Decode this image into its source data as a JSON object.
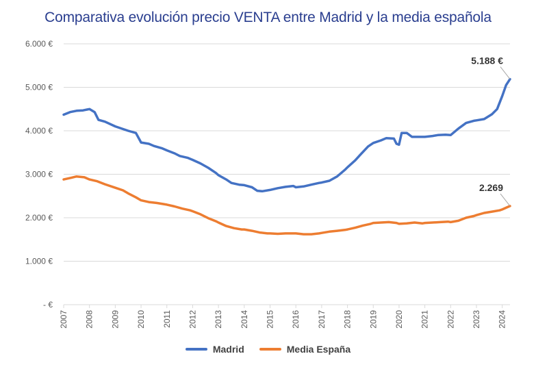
{
  "chart_data": {
    "type": "line",
    "title": "Comparativa evolución precio VENTA entre Madrid y la media española",
    "xlabel": "",
    "ylabel": "",
    "xlim": [
      2007,
      2024.3
    ],
    "ylim": [
      0,
      6000
    ],
    "y_ticks": [
      {
        "value": 0,
        "label": "-  €"
      },
      {
        "value": 1000,
        "label": "1.000 €"
      },
      {
        "value": 2000,
        "label": "2.000 €"
      },
      {
        "value": 3000,
        "label": "3.000 €"
      },
      {
        "value": 4000,
        "label": "4.000 €"
      },
      {
        "value": 5000,
        "label": "5.000 €"
      },
      {
        "value": 6000,
        "label": "6.000 €"
      }
    ],
    "x_ticks": [
      "2007",
      "2008",
      "2009",
      "2010",
      "2011",
      "2012",
      "2013",
      "2014",
      "2015",
      "2016",
      "2017",
      "2018",
      "2019",
      "2020",
      "2021",
      "2022",
      "2023",
      "2024"
    ],
    "grid": true,
    "legend_position": "bottom",
    "series": [
      {
        "name": "Madrid",
        "color": "#4472c4",
        "end_label": "5.188 €",
        "points": [
          [
            2007.0,
            4370
          ],
          [
            2007.25,
            4430
          ],
          [
            2007.5,
            4460
          ],
          [
            2007.75,
            4470
          ],
          [
            2008.0,
            4500
          ],
          [
            2008.2,
            4430
          ],
          [
            2008.35,
            4250
          ],
          [
            2008.6,
            4210
          ],
          [
            2009.0,
            4100
          ],
          [
            2009.5,
            4000
          ],
          [
            2009.8,
            3950
          ],
          [
            2010.0,
            3730
          ],
          [
            2010.3,
            3700
          ],
          [
            2010.5,
            3650
          ],
          [
            2010.8,
            3600
          ],
          [
            2011.0,
            3550
          ],
          [
            2011.3,
            3480
          ],
          [
            2011.5,
            3420
          ],
          [
            2011.8,
            3380
          ],
          [
            2012.0,
            3330
          ],
          [
            2012.3,
            3250
          ],
          [
            2012.6,
            3150
          ],
          [
            2012.9,
            3030
          ],
          [
            2013.0,
            2980
          ],
          [
            2013.3,
            2880
          ],
          [
            2013.5,
            2800
          ],
          [
            2013.8,
            2760
          ],
          [
            2014.0,
            2750
          ],
          [
            2014.3,
            2700
          ],
          [
            2014.5,
            2620
          ],
          [
            2014.7,
            2610
          ],
          [
            2015.0,
            2640
          ],
          [
            2015.3,
            2680
          ],
          [
            2015.6,
            2710
          ],
          [
            2015.9,
            2730
          ],
          [
            2016.0,
            2700
          ],
          [
            2016.3,
            2720
          ],
          [
            2016.6,
            2760
          ],
          [
            2016.9,
            2800
          ],
          [
            2017.0,
            2810
          ],
          [
            2017.3,
            2850
          ],
          [
            2017.6,
            2950
          ],
          [
            2017.9,
            3100
          ],
          [
            2018.0,
            3160
          ],
          [
            2018.3,
            3320
          ],
          [
            2018.5,
            3450
          ],
          [
            2018.8,
            3640
          ],
          [
            2019.0,
            3720
          ],
          [
            2019.3,
            3780
          ],
          [
            2019.5,
            3830
          ],
          [
            2019.8,
            3820
          ],
          [
            2019.9,
            3700
          ],
          [
            2020.0,
            3680
          ],
          [
            2020.1,
            3950
          ],
          [
            2020.3,
            3950
          ],
          [
            2020.5,
            3860
          ],
          [
            2020.8,
            3860
          ],
          [
            2021.0,
            3860
          ],
          [
            2021.3,
            3880
          ],
          [
            2021.5,
            3900
          ],
          [
            2021.8,
            3910
          ],
          [
            2022.0,
            3900
          ],
          [
            2022.3,
            4050
          ],
          [
            2022.6,
            4180
          ],
          [
            2022.9,
            4230
          ],
          [
            2023.0,
            4240
          ],
          [
            2023.3,
            4270
          ],
          [
            2023.6,
            4380
          ],
          [
            2023.8,
            4500
          ],
          [
            2024.0,
            4800
          ],
          [
            2024.15,
            5050
          ],
          [
            2024.3,
            5188
          ]
        ]
      },
      {
        "name": "Media España",
        "color": "#ed7d31",
        "end_label": "2.269",
        "points": [
          [
            2007.0,
            2880
          ],
          [
            2007.3,
            2920
          ],
          [
            2007.5,
            2950
          ],
          [
            2007.8,
            2930
          ],
          [
            2008.0,
            2880
          ],
          [
            2008.3,
            2840
          ],
          [
            2008.6,
            2770
          ],
          [
            2009.0,
            2690
          ],
          [
            2009.3,
            2630
          ],
          [
            2009.5,
            2560
          ],
          [
            2009.8,
            2470
          ],
          [
            2010.0,
            2400
          ],
          [
            2010.3,
            2360
          ],
          [
            2010.6,
            2340
          ],
          [
            2011.0,
            2300
          ],
          [
            2011.3,
            2260
          ],
          [
            2011.6,
            2210
          ],
          [
            2011.9,
            2170
          ],
          [
            2012.0,
            2150
          ],
          [
            2012.3,
            2080
          ],
          [
            2012.6,
            1990
          ],
          [
            2012.9,
            1920
          ],
          [
            2013.0,
            1890
          ],
          [
            2013.3,
            1810
          ],
          [
            2013.6,
            1760
          ],
          [
            2013.9,
            1730
          ],
          [
            2014.0,
            1730
          ],
          [
            2014.3,
            1700
          ],
          [
            2014.6,
            1660
          ],
          [
            2014.9,
            1640
          ],
          [
            2015.0,
            1640
          ],
          [
            2015.3,
            1630
          ],
          [
            2015.6,
            1640
          ],
          [
            2015.9,
            1640
          ],
          [
            2016.0,
            1640
          ],
          [
            2016.3,
            1620
          ],
          [
            2016.6,
            1620
          ],
          [
            2016.9,
            1640
          ],
          [
            2017.0,
            1650
          ],
          [
            2017.3,
            1680
          ],
          [
            2017.6,
            1700
          ],
          [
            2017.9,
            1720
          ],
          [
            2018.0,
            1730
          ],
          [
            2018.3,
            1770
          ],
          [
            2018.6,
            1820
          ],
          [
            2018.9,
            1860
          ],
          [
            2019.0,
            1880
          ],
          [
            2019.3,
            1890
          ],
          [
            2019.6,
            1900
          ],
          [
            2019.9,
            1880
          ],
          [
            2020.0,
            1860
          ],
          [
            2020.3,
            1870
          ],
          [
            2020.6,
            1890
          ],
          [
            2020.9,
            1870
          ],
          [
            2021.0,
            1880
          ],
          [
            2021.3,
            1890
          ],
          [
            2021.6,
            1900
          ],
          [
            2021.9,
            1910
          ],
          [
            2022.0,
            1900
          ],
          [
            2022.3,
            1930
          ],
          [
            2022.6,
            2000
          ],
          [
            2022.9,
            2040
          ],
          [
            2023.0,
            2060
          ],
          [
            2023.3,
            2110
          ],
          [
            2023.6,
            2140
          ],
          [
            2023.9,
            2170
          ],
          [
            2024.0,
            2190
          ],
          [
            2024.15,
            2230
          ],
          [
            2024.3,
            2269
          ]
        ]
      }
    ]
  }
}
